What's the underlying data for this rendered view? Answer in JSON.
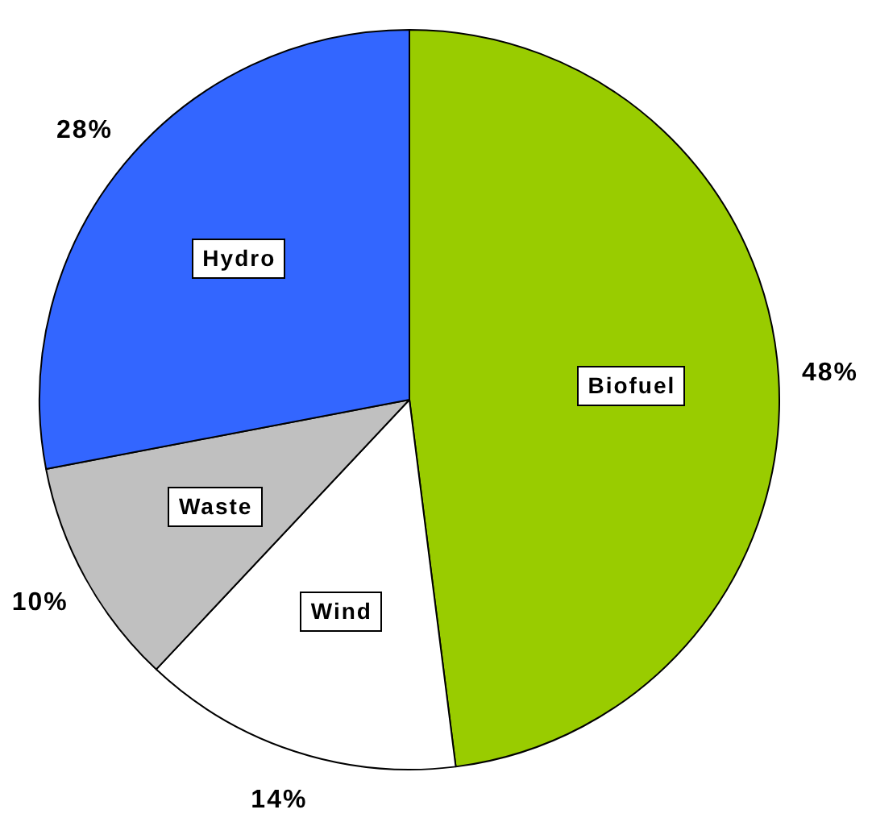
{
  "chart_data": {
    "type": "pie",
    "categories": [
      "Biofuel",
      "Wind",
      "Waste",
      "Hydro"
    ],
    "values": [
      48,
      14,
      10,
      28
    ],
    "colors": [
      "#99cc00",
      "#ffffff",
      "#c0c0c0",
      "#3366ff"
    ],
    "value_labels": [
      "48%",
      "14%",
      "10%",
      "28%"
    ]
  }
}
